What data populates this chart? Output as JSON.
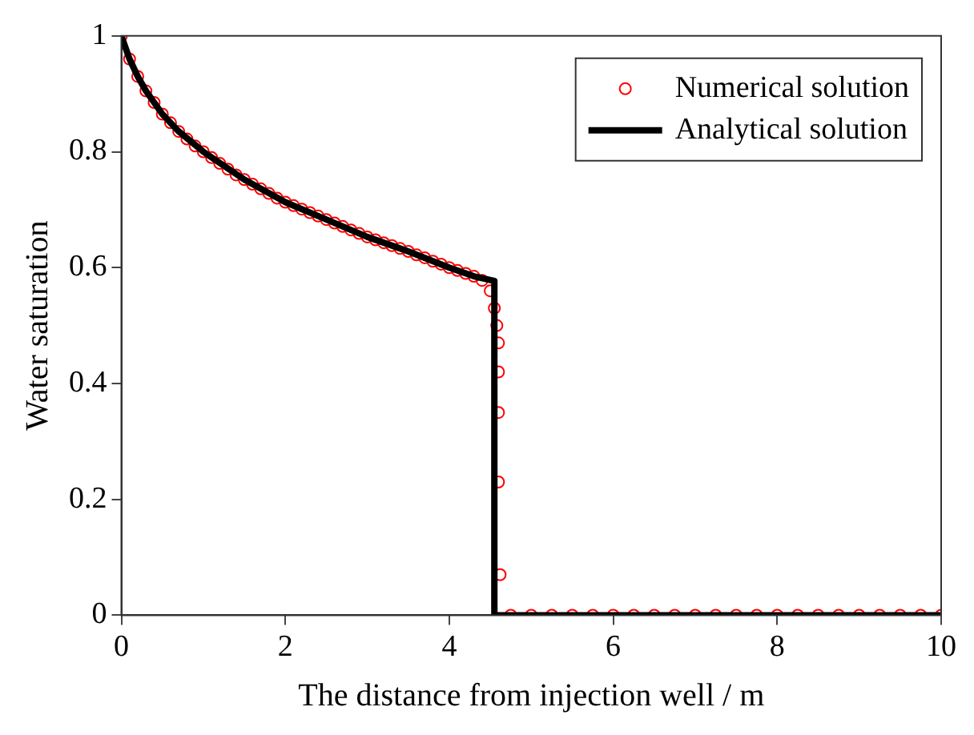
{
  "chart_data": {
    "type": "scatter",
    "xlabel": "The distance from injection well / m",
    "ylabel": "Water saturation",
    "xlim": [
      0,
      10
    ],
    "xticks": [
      0,
      2,
      4,
      6,
      8,
      10
    ],
    "ylim": [
      0,
      1
    ],
    "yticks": [
      0,
      0.2,
      0.4,
      0.6,
      0.8,
      1
    ],
    "grid": false,
    "legend": "top right",
    "series": [
      {
        "name": "Numerical solution",
        "type": "scatter",
        "marker": "circle",
        "color": "#ff0000",
        "x": [
          0,
          0.1,
          0.2,
          0.3,
          0.4,
          0.5,
          0.6,
          0.7,
          0.8,
          0.9,
          1.0,
          1.1,
          1.2,
          1.3,
          1.4,
          1.5,
          1.6,
          1.7,
          1.8,
          1.9,
          2.0,
          2.1,
          2.2,
          2.3,
          2.4,
          2.5,
          2.6,
          2.7,
          2.8,
          2.9,
          3.0,
          3.1,
          3.2,
          3.3,
          3.4,
          3.5,
          3.6,
          3.7,
          3.8,
          3.9,
          4.0,
          4.1,
          4.2,
          4.3,
          4.4,
          4.5,
          4.55,
          4.58,
          4.6,
          4.6,
          4.6,
          4.6,
          4.62,
          4.75,
          5,
          5.25,
          5.5,
          5.75,
          6,
          6.25,
          6.5,
          6.75,
          7,
          7.25,
          7.5,
          7.75,
          8,
          8.25,
          8.5,
          8.75,
          9,
          9.25,
          9.5,
          9.75,
          10
        ],
        "values": [
          1,
          0.96,
          0.93,
          0.905,
          0.885,
          0.865,
          0.85,
          0.835,
          0.822,
          0.81,
          0.8,
          0.79,
          0.78,
          0.77,
          0.76,
          0.752,
          0.744,
          0.736,
          0.728,
          0.72,
          0.713,
          0.707,
          0.701,
          0.695,
          0.689,
          0.683,
          0.677,
          0.671,
          0.665,
          0.659,
          0.653,
          0.648,
          0.643,
          0.638,
          0.633,
          0.628,
          0.622,
          0.617,
          0.611,
          0.606,
          0.6,
          0.595,
          0.59,
          0.585,
          0.578,
          0.56,
          0.53,
          0.5,
          0.47,
          0.42,
          0.35,
          0.23,
          0.07,
          0,
          0,
          0,
          0,
          0,
          0,
          0,
          0,
          0,
          0,
          0,
          0,
          0,
          0,
          0,
          0,
          0,
          0,
          0,
          0,
          0,
          0
        ]
      },
      {
        "name": "Analytical solution",
        "type": "line",
        "line_style": "solid",
        "color": "#000000",
        "x": [
          0,
          0.1,
          0.2,
          0.3,
          0.5,
          0.7,
          1,
          1.5,
          2,
          2.5,
          3,
          3.5,
          4,
          4.3,
          4.55,
          4.55,
          10
        ],
        "values": [
          1,
          0.96,
          0.93,
          0.905,
          0.865,
          0.835,
          0.8,
          0.752,
          0.713,
          0.683,
          0.653,
          0.628,
          0.6,
          0.585,
          0.577,
          0,
          0
        ]
      }
    ]
  }
}
